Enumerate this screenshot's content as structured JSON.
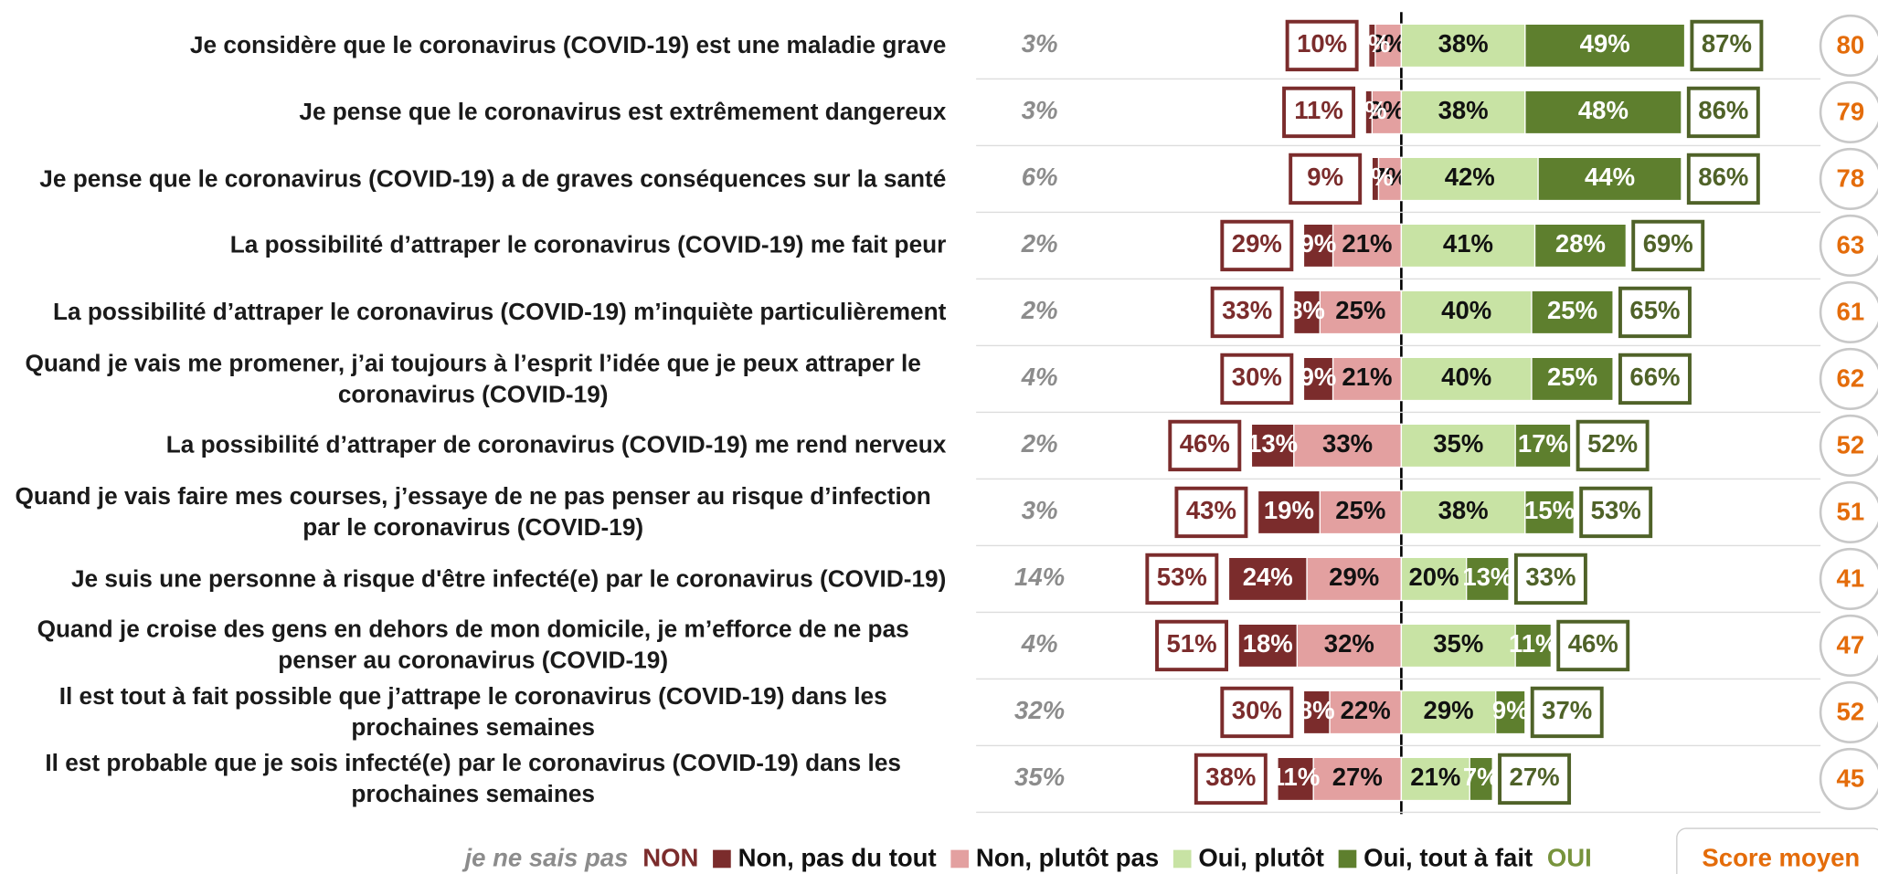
{
  "chart_data": {
    "type": "diverging_bar",
    "categories": [
      "Je considère que le coronavirus (COVID-19) est une maladie grave",
      "Je pense que le coronavirus est extrêmement dangereux",
      "Je pense que le coronavirus (COVID-19) a de graves conséquences sur la santé",
      "La possibilité d’attraper le coronavirus (COVID-19) me fait peur",
      "La possibilité d’attraper le coronavirus (COVID-19) m’inquiète particulièrement",
      "Quand je vais me promener, j’ai toujours à l’esprit l’idée que je peux attraper le coronavirus (COVID-19)",
      "La possibilité d’attraper de coronavirus (COVID-19) me rend nerveux",
      "Quand je vais faire mes courses, j’essaye de ne pas penser au risque d’infection par le coronavirus (COVID-19)",
      "Je suis une personne à risque d'être infecté(e) par le coronavirus (COVID-19)",
      "Quand je croise des gens en dehors de mon domicile, je m’efforce de ne pas penser au coronavirus (COVID-19)",
      "Il est tout à fait possible que j’attrape le coronavirus (COVID-19) dans les prochaines semaines",
      "Il est probable que je sois infecté(e) par le coronavirus (COVID-19) dans les prochaines semaines"
    ],
    "series": [
      {
        "name": "Non, pas du tout",
        "color": "#7b2c2c",
        "side": "left",
        "values": [
          2,
          2,
          2,
          9,
          8,
          9,
          13,
          19,
          24,
          18,
          8,
          11
        ],
        "value_labels": [
          "2%",
          "2%",
          "2%",
          "9%",
          "8%",
          "9%",
          "13%",
          "19%",
          "24%",
          "18%",
          "8%",
          "11%"
        ]
      },
      {
        "name": "Non, plutôt pas",
        "color": "#e3a0a0",
        "side": "left",
        "values": [
          8,
          9,
          7,
          21,
          25,
          21,
          33,
          25,
          29,
          32,
          22,
          27
        ],
        "value_labels": [
          "8%",
          "9%",
          "7%",
          "21%",
          "25%",
          "21%",
          "33%",
          "25%",
          "29%",
          "32%",
          "22%",
          "27%"
        ]
      },
      {
        "name": "Oui, plutôt",
        "color": "#c8e3a4",
        "side": "right",
        "values": [
          38,
          38,
          42,
          41,
          40,
          40,
          35,
          38,
          20,
          35,
          29,
          21
        ],
        "value_labels": [
          "38%",
          "38%",
          "42%",
          "41%",
          "40%",
          "40%",
          "35%",
          "38%",
          "20%",
          "35%",
          "29%",
          "21%"
        ]
      },
      {
        "name": "Oui, tout à fait",
        "color": "#5e7f2e",
        "side": "right",
        "values": [
          49,
          48,
          44,
          28,
          25,
          25,
          17,
          15,
          13,
          11,
          9,
          7
        ],
        "value_labels": [
          "49%",
          "48%",
          "44%",
          "28%",
          "25%",
          "25%",
          "17%",
          "15%",
          "13%",
          "11%",
          "9%",
          "7%"
        ]
      }
    ],
    "dont_know": {
      "name": "je ne sais pas",
      "color": "#8c8c8c",
      "values": [
        3,
        3,
        6,
        2,
        2,
        4,
        2,
        3,
        14,
        4,
        32,
        35
      ],
      "value_labels": [
        "3%",
        "3%",
        "6%",
        "2%",
        "2%",
        "4%",
        "2%",
        "3%",
        "14%",
        "4%",
        "32%",
        "35%"
      ]
    },
    "non_total": {
      "name": "NON",
      "color": "#7b2c2c",
      "values": [
        10,
        11,
        9,
        29,
        33,
        30,
        46,
        43,
        53,
        51,
        30,
        38
      ],
      "value_labels": [
        "10%",
        "11%",
        "9%",
        "29%",
        "33%",
        "30%",
        "46%",
        "43%",
        "53%",
        "51%",
        "30%",
        "38%"
      ]
    },
    "oui_total": {
      "name": "OUI",
      "color": "#4f6228",
      "values": [
        87,
        86,
        86,
        69,
        65,
        66,
        52,
        53,
        33,
        46,
        37,
        27
      ],
      "value_labels": [
        "87%",
        "86%",
        "86%",
        "69%",
        "65%",
        "66%",
        "52%",
        "53%",
        "33%",
        "46%",
        "37%",
        "27%"
      ]
    },
    "score": {
      "name": "Score moyen",
      "color": "#e46c0a",
      "values": [
        80,
        79,
        78,
        63,
        61,
        62,
        52,
        51,
        41,
        47,
        52,
        45
      ]
    }
  }
}
